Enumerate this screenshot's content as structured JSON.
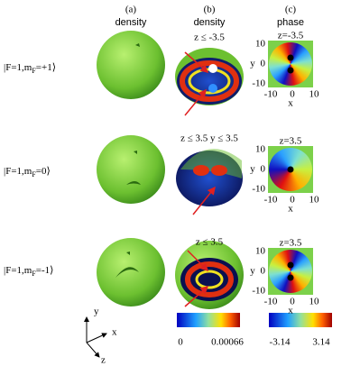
{
  "columns": [
    {
      "letter": "(a)",
      "label": "density"
    },
    {
      "letter": "(b)",
      "label": "density"
    },
    {
      "letter": "(c)",
      "label": "phase"
    }
  ],
  "rows": [
    {
      "state": {
        "prefix": "|F=1,m",
        "sub": "F",
        "suffix": "=+1⟩"
      },
      "slice": "z ≤ -3.5",
      "phase": {
        "title": "z=-3.5",
        "y_label": "y",
        "y_ticks": [
          "10",
          "0",
          "-10"
        ],
        "x_label": "x",
        "x_ticks": [
          "-10",
          "0",
          "10"
        ]
      }
    },
    {
      "state": {
        "prefix": "|F=1,m",
        "sub": "F",
        "suffix": "=0⟩"
      },
      "slice": "z ≤ 3.5 y ≤ 3.5",
      "phase": {
        "title": "z=3.5",
        "y_label": "y",
        "y_ticks": [
          "10",
          "0",
          "-10"
        ],
        "x_label": "x",
        "x_ticks": [
          "-10",
          "0",
          "10"
        ]
      }
    },
    {
      "state": {
        "prefix": "|F=1,m",
        "sub": "F",
        "suffix": "=-1⟩"
      },
      "slice": "z ≤ 3.5",
      "phase": {
        "title": "z=3.5",
        "y_label": "y",
        "y_ticks": [
          "10",
          "0",
          "-10"
        ],
        "x_label": "x",
        "x_ticks": [
          "-10",
          "0",
          "10"
        ]
      }
    }
  ],
  "colorbars": {
    "density": {
      "min": "0",
      "max": "0.00066"
    },
    "phase": {
      "min": "-3.14",
      "max": "3.14"
    }
  },
  "axes_triad": {
    "y": "y",
    "x": "x",
    "z": "z"
  }
}
